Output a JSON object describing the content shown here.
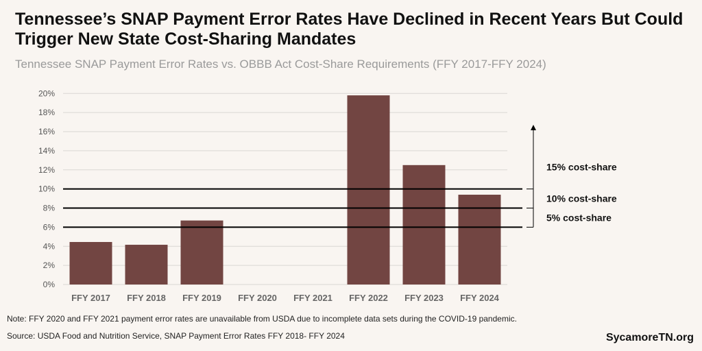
{
  "title": "Tennessee’s SNAP Payment Error Rates Have Declined in Recent Years But Could Trigger New State Cost-Sharing Mandates",
  "subtitle": "Tennessee SNAP Payment Error Rates vs. OBBB Act Cost-Share Requirements (FFY 2017-FFY 2024)",
  "note": "Note: FFY 2020 and FFY 2021 payment error rates are unavailable from USDA due to incomplete data sets during the COVID-19 pandemic.",
  "source": "Source: USDA Food and Nutrition Service, SNAP Payment Error Rates FFY 2018- FFY 2024",
  "brand": "SycamoreTN.org",
  "chart_data": {
    "type": "bar",
    "categories": [
      "FFY 2017",
      "FFY 2018",
      "FFY 2019",
      "FFY 2020",
      "FFY 2021",
      "FFY 2022",
      "FFY 2023",
      "FFY 2024"
    ],
    "values": [
      4.45,
      4.16,
      6.7,
      null,
      null,
      19.8,
      12.5,
      9.4
    ],
    "ylim": [
      0,
      20
    ],
    "yticks": [
      0,
      2,
      4,
      6,
      8,
      10,
      12,
      14,
      16,
      18,
      20
    ],
    "ytick_labels": [
      "0%",
      "2%",
      "4%",
      "6%",
      "8%",
      "10%",
      "12%",
      "14%",
      "16%",
      "18%",
      "20%"
    ],
    "grid": true,
    "bar_color": "#724542",
    "thresholds": [
      6,
      8,
      10
    ],
    "annotations": [
      "5% cost-share",
      "10% cost-share",
      "15% cost-share"
    ]
  }
}
